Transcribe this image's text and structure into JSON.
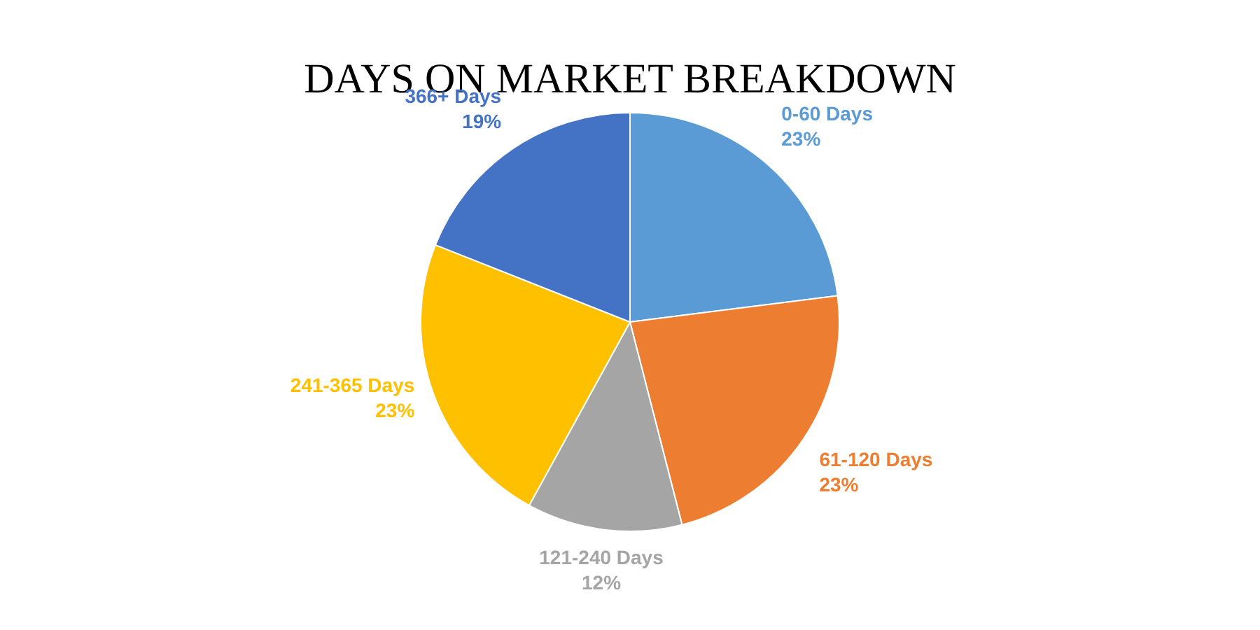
{
  "chart_data": {
    "type": "pie",
    "title": "DAYS ON MARKET BREAKDOWN",
    "categories": [
      "0-60 Days",
      "61-120 Days",
      "121-240 Days",
      "241-365 Days",
      "366+ Days"
    ],
    "values": [
      23,
      23,
      12,
      23,
      19
    ],
    "colors": [
      "#5b9bd5",
      "#ed7d31",
      "#a5a5a5",
      "#ffc000",
      "#4472c4"
    ],
    "value_labels": [
      "23%",
      "23%",
      "12%",
      "23%",
      "19%"
    ],
    "legend": false
  }
}
